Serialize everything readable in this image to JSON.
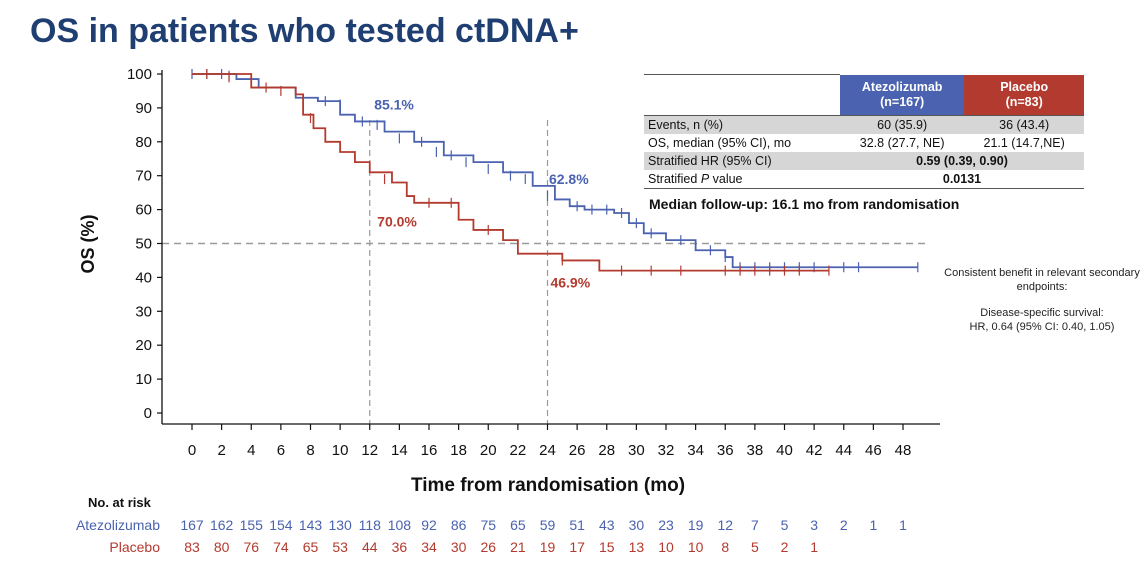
{
  "title": "OS in patients who tested ctDNA+",
  "colors": {
    "atezolizumab": "#4a62b0",
    "placebo": "#b33a2e",
    "title": "#1f3f72"
  },
  "chart_data": {
    "type": "line",
    "subtype": "kaplan-meier",
    "xlabel": "Time from randomisation (mo)",
    "ylabel": "OS (%)",
    "xlim": [
      0,
      48
    ],
    "ylim": [
      0,
      100
    ],
    "xticks": [
      0,
      2,
      4,
      6,
      8,
      10,
      12,
      14,
      16,
      18,
      20,
      22,
      24,
      26,
      28,
      30,
      32,
      34,
      36,
      38,
      40,
      42,
      44,
      46,
      48
    ],
    "yticks": [
      0,
      10,
      20,
      30,
      40,
      50,
      60,
      70,
      80,
      90,
      100
    ],
    "reference_line_y": 50,
    "reference_lines_x": [
      12,
      24
    ],
    "series": [
      {
        "name": "Atezolizumab",
        "color": "#4a62b0",
        "points": [
          [
            0,
            100
          ],
          [
            3,
            98.5
          ],
          [
            4.5,
            96
          ],
          [
            7,
            93
          ],
          [
            8.5,
            92
          ],
          [
            10,
            88
          ],
          [
            11,
            86
          ],
          [
            13,
            83
          ],
          [
            15,
            80
          ],
          [
            17,
            76
          ],
          [
            19,
            74
          ],
          [
            21,
            71
          ],
          [
            23,
            67
          ],
          [
            24.5,
            63
          ],
          [
            25.5,
            61
          ],
          [
            26.5,
            60
          ],
          [
            28.5,
            59
          ],
          [
            29.5,
            56
          ],
          [
            30.5,
            53
          ],
          [
            32,
            51
          ],
          [
            34,
            48
          ],
          [
            36,
            46
          ],
          [
            36.5,
            43
          ],
          [
            49,
            43
          ]
        ],
        "censors": [
          [
            0,
            100
          ],
          [
            1,
            100
          ],
          [
            2,
            100
          ],
          [
            2.5,
            99.5
          ],
          [
            7.5,
            92
          ],
          [
            9,
            92
          ],
          [
            10,
            91
          ],
          [
            11.5,
            86
          ],
          [
            12.5,
            85
          ],
          [
            14,
            81
          ],
          [
            15.5,
            80
          ],
          [
            16.5,
            77
          ],
          [
            17.5,
            76
          ],
          [
            18.5,
            74
          ],
          [
            20,
            72
          ],
          [
            21.5,
            70
          ],
          [
            22.5,
            69
          ],
          [
            24,
            64
          ],
          [
            26,
            61
          ],
          [
            27,
            60
          ],
          [
            28,
            60
          ],
          [
            29,
            59
          ],
          [
            30,
            56
          ],
          [
            31,
            53
          ],
          [
            33,
            51
          ],
          [
            35,
            48
          ],
          [
            36,
            46
          ],
          [
            37,
            43
          ],
          [
            38,
            43
          ],
          [
            39,
            43
          ],
          [
            40,
            43
          ],
          [
            41,
            43
          ],
          [
            42,
            43
          ],
          [
            44,
            43
          ],
          [
            45,
            43
          ],
          [
            49,
            43
          ]
        ]
      },
      {
        "name": "Placebo",
        "color": "#b33a2e",
        "points": [
          [
            0,
            100
          ],
          [
            4,
            96
          ],
          [
            7,
            94
          ],
          [
            7.5,
            88
          ],
          [
            8.2,
            84
          ],
          [
            9,
            80
          ],
          [
            10,
            77
          ],
          [
            11,
            74
          ],
          [
            12,
            71
          ],
          [
            13.5,
            68
          ],
          [
            14.5,
            64
          ],
          [
            15,
            62
          ],
          [
            18,
            57
          ],
          [
            19,
            54
          ],
          [
            21,
            51
          ],
          [
            22,
            47
          ],
          [
            25,
            45
          ],
          [
            27.5,
            42
          ],
          [
            43,
            42
          ]
        ],
        "censors": [
          [
            1,
            100
          ],
          [
            2.5,
            99
          ],
          [
            5,
            96
          ],
          [
            6,
            95
          ],
          [
            8,
            87
          ],
          [
            13,
            69
          ],
          [
            16,
            62
          ],
          [
            17.5,
            62
          ],
          [
            20,
            54
          ],
          [
            25,
            45
          ],
          [
            29,
            42
          ],
          [
            31,
            42
          ],
          [
            33,
            42
          ],
          [
            36,
            42
          ],
          [
            37,
            42
          ],
          [
            38,
            42
          ],
          [
            39,
            42
          ],
          [
            40,
            42
          ],
          [
            41,
            42
          ],
          [
            43,
            42
          ]
        ]
      }
    ],
    "annotations": [
      {
        "text": "85.1%",
        "x": 12.3,
        "y": 89.5,
        "color": "#4a62b0"
      },
      {
        "text": "70.0%",
        "x": 12.5,
        "y": 55,
        "color": "#b33a2e"
      },
      {
        "text": "62.8%",
        "x": 24.1,
        "y": 67.5,
        "color": "#4a62b0"
      },
      {
        "text": "46.9%",
        "x": 24.2,
        "y": 37,
        "color": "#b33a2e"
      }
    ],
    "risk_table": {
      "title": "No. at risk",
      "rows": [
        {
          "name": "Atezolizumab",
          "color": "#4a62b0",
          "values": [
            "167",
            "162",
            "155",
            "154",
            "143",
            "130",
            "118",
            "108",
            "92",
            "86",
            "75",
            "65",
            "59",
            "51",
            "43",
            "30",
            "23",
            "19",
            "12",
            "7",
            "5",
            "3",
            "2",
            "1",
            "1"
          ]
        },
        {
          "name": "Placebo",
          "color": "#b33a2e",
          "values": [
            "83",
            "80",
            "76",
            "74",
            "65",
            "53",
            "44",
            "36",
            "34",
            "30",
            "26",
            "21",
            "19",
            "17",
            "15",
            "13",
            "10",
            "10",
            "8",
            "5",
            "2",
            "1",
            "",
            "",
            ""
          ]
        }
      ]
    }
  },
  "stats_table": {
    "arms": [
      {
        "name": "Atezolizumab",
        "n": "(n=167)",
        "color": "#4a62b0"
      },
      {
        "name": "Placebo",
        "n": "(n=83)",
        "color": "#b33a2e"
      }
    ],
    "rows": [
      {
        "label": "Events, n (%)",
        "atezo": "60 (35.9)",
        "placebo": "36 (43.4)"
      },
      {
        "label": "OS, median (95% CI), mo",
        "atezo": "32.8 (27.7, NE)",
        "placebo": "21.1 (14.7,NE)"
      },
      {
        "label": "Stratified HR (95% CI)",
        "combined": "0.59 (0.39, 0.90)"
      },
      {
        "label_pre": "Stratified ",
        "label_italic": "P",
        "label_post": " value",
        "combined": "0.0131"
      }
    ]
  },
  "followup": "Median follow-up: 16.1 mo from randomisation",
  "side_note": {
    "line1": "Consistent benefit in relevant secondary endpoints:",
    "line2a": "Disease-specific survival:",
    "line2b": "HR, 0.64 (95% CI: 0.40, 1.05)"
  }
}
